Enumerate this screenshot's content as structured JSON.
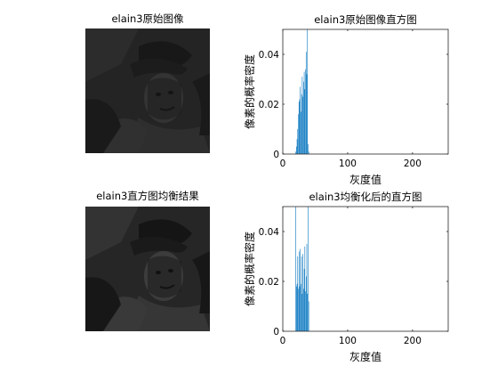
{
  "figure": {
    "panels": {
      "orig_image": {
        "title": "elain3原始图像",
        "alt": "elain3原始图像"
      },
      "eq_image": {
        "title": "elain3直方图均衡结果",
        "alt": "elain3直方图均衡结果"
      }
    },
    "colors": {
      "bar": "#0072bd",
      "axis": "#262626",
      "image_bg": "#242424"
    }
  },
  "chart_data": [
    {
      "type": "bar",
      "title": "elain3原始图像直方图",
      "xlabel": "灰度值",
      "ylabel": "像素的概率密度",
      "xlim": [
        0,
        255
      ],
      "ylim": [
        0,
        0.05
      ],
      "xticks": [
        0,
        100,
        200
      ],
      "yticks": [
        0,
        0.02,
        0.04
      ],
      "ytick_labels": [
        "0",
        "0.02",
        "0.04"
      ],
      "grid": false,
      "x": [
        20,
        21,
        22,
        23,
        24,
        25,
        26,
        27,
        28,
        29,
        30,
        31,
        32,
        33,
        34,
        35,
        36,
        37,
        38,
        39,
        40
      ],
      "values": [
        0.001,
        0.003,
        0.006,
        0.01,
        0.016,
        0.021,
        0.022,
        0.027,
        0.017,
        0.024,
        0.031,
        0.023,
        0.029,
        0.033,
        0.026,
        0.034,
        0.041,
        0.032,
        0.05,
        0.004,
        0.001
      ]
    },
    {
      "type": "bar",
      "title": "elain3均衡化后的直方图",
      "xlabel": "灰度值",
      "ylabel": "像素的概率密度",
      "xlim": [
        0,
        255
      ],
      "ylim": [
        0,
        0.05
      ],
      "xticks": [
        0,
        100,
        200
      ],
      "yticks": [
        0,
        0.02,
        0.04
      ],
      "ytick_labels": [
        "0",
        "0.02",
        "0.04"
      ],
      "grid": false,
      "x": [
        20,
        21,
        22,
        23,
        24,
        25,
        26,
        27,
        28,
        29,
        30,
        31,
        32,
        33,
        34,
        35,
        36,
        37,
        38,
        39,
        40
      ],
      "values": [
        0.05,
        0.018,
        0.019,
        0.03,
        0.017,
        0.032,
        0.018,
        0.033,
        0.019,
        0.03,
        0.015,
        0.031,
        0.017,
        0.025,
        0.034,
        0.016,
        0.022,
        0.035,
        0.015,
        0.05,
        0.012
      ]
    }
  ]
}
